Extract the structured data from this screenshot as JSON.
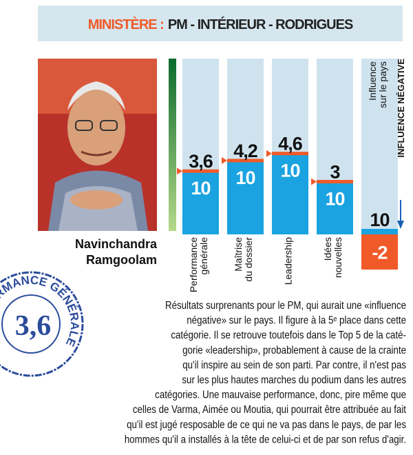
{
  "header": {
    "label": "MINISTÈRE :",
    "text": "PM - INTÉRIEUR - RODRIGUES"
  },
  "person": {
    "name": [
      "Navinchandra",
      "Ramgoolam"
    ]
  },
  "stamp": {
    "label": "PERFORMANCE GÉNÉRALE",
    "score": "3,6"
  },
  "chart_data": {
    "type": "bar",
    "categories": [
      "Performance\ngénérale",
      "Maîtrise\ndu dossier",
      "Leadership",
      "Idées\nnouvelles",
      "Influence\nsur le pays"
    ],
    "values": [
      3.6,
      4.2,
      4.6,
      3,
      -2
    ],
    "value_labels": [
      "3,6",
      "4,2",
      "4,6",
      "3",
      "-2"
    ],
    "ylim": [
      -2,
      10
    ],
    "colors": {
      "bar": "#1aa3e0",
      "column": "#cfe3ef",
      "marker": "#f05a28",
      "negative": "#f05a28"
    },
    "annotation": "INFLUENCE NÉGATIVE"
  },
  "text": {
    "lines": [
      "Résultats surprenants pour le PM, qui aurait une «influence",
      "négative» sur le pays. Il figure à la 5ᵉ place dans cette",
      "catégorie. Il se retrouve toutefois dans le Top 5 de la caté-",
      "gorie «leadership», probablement à cause de la crainte",
      "qu'il inspire au sein de son parti. Par contre, il n'est pas",
      "sur les plus hautes marches du podium dans les autres",
      "catégories. Une mauvaise performance, donc, pire même que",
      "celles de Varma, Aimée ou Moutia, qui pourrait être attribuée au fait",
      "qu'il est jugé resposable de ce qui ne va pas dans le pays, de par les",
      "hommes qu'il a installés à la tête de celui-ci et de par son refus d'agir."
    ]
  }
}
